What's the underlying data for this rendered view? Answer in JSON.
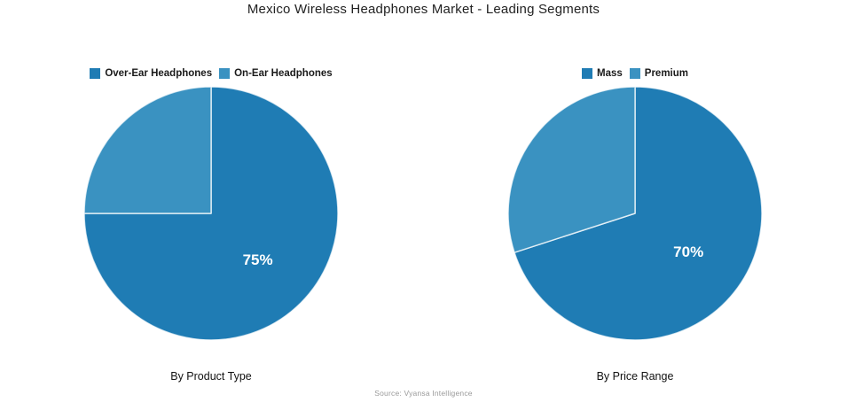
{
  "page": {
    "title": "Mexico Wireless Headphones Market - Leading Segments",
    "source": "Source: Vyansa Intelligence",
    "background": "#ffffff"
  },
  "colors": {
    "primary_slice": "#1f7cb4",
    "secondary_slice": "#3a92c1",
    "slice_divider": "rgba(255,255,255,0.75)",
    "title_text": "#222222",
    "legend_text": "#1a1a1a",
    "source_text": "#9a9a9a",
    "slice_label_text": "#ffffff"
  },
  "chart_data": [
    {
      "type": "pie",
      "title": "By Product Type",
      "labels": [
        "Over-Ear Headphones",
        "On-Ear Headphones"
      ],
      "values": [
        75,
        25
      ],
      "unit": "%",
      "shown_labels": [
        "75%",
        ""
      ],
      "colors": [
        "#1f7cb4",
        "#3a92c1"
      ],
      "start_angle_deg": 0,
      "direction": "clockwise",
      "legend_position": "top"
    },
    {
      "type": "pie",
      "title": "By Price Range",
      "labels": [
        "Mass",
        "Premium"
      ],
      "values": [
        70,
        30
      ],
      "unit": "%",
      "shown_labels": [
        "70%",
        ""
      ],
      "colors": [
        "#1f7cb4",
        "#3a92c1"
      ],
      "start_angle_deg": 0,
      "direction": "clockwise",
      "legend_position": "top"
    }
  ]
}
